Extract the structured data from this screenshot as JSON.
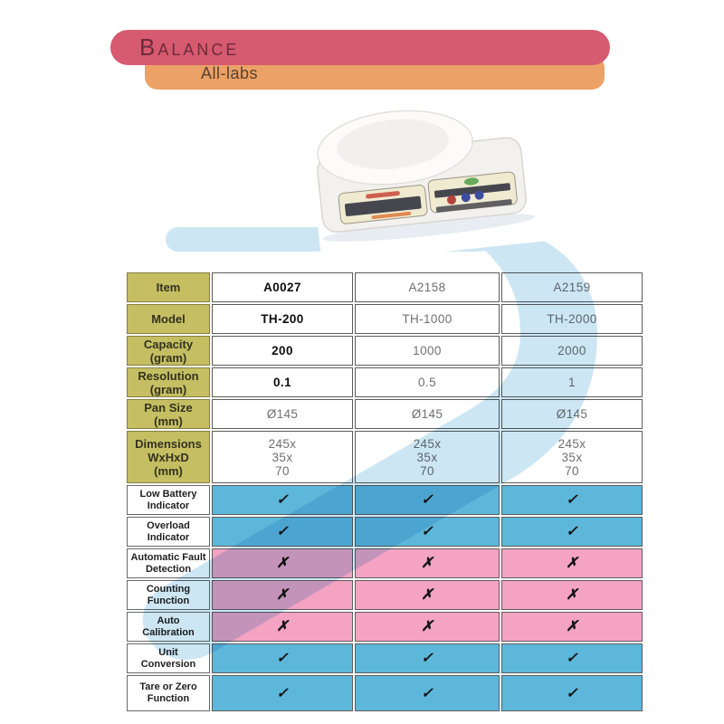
{
  "banner": {
    "title": "Balance",
    "brand": "All-labs"
  },
  "colors": {
    "banner_red": "#d65a70",
    "banner_orange": "#eca166",
    "title_maroon": "#6e2b3c",
    "header_olive": "#c5be62",
    "row_blue": "#5db7da",
    "row_pink": "#f4a3c3",
    "watermark_blue": "#c5e2f2"
  },
  "marks": {
    "yes": "✓",
    "no": "✗"
  },
  "table": {
    "columns": 3,
    "rows": [
      {
        "label_lines": [
          "Item"
        ],
        "kind": "spec",
        "first_bold": true,
        "values": [
          [
            "A0027"
          ],
          [
            "A2158"
          ],
          [
            "A2159"
          ]
        ]
      },
      {
        "label_lines": [
          "Model"
        ],
        "kind": "spec",
        "first_bold": true,
        "values": [
          [
            "TH-200"
          ],
          [
            "TH-1000"
          ],
          [
            "TH-2000"
          ]
        ]
      },
      {
        "label_lines": [
          "Capacity",
          "(gram)"
        ],
        "kind": "spec",
        "first_bold": true,
        "values": [
          [
            "200"
          ],
          [
            "1000"
          ],
          [
            "2000"
          ]
        ]
      },
      {
        "label_lines": [
          "Resolution",
          "(gram)"
        ],
        "kind": "spec",
        "first_bold": true,
        "values": [
          [
            "0.1"
          ],
          [
            "0.5"
          ],
          [
            "1"
          ]
        ]
      },
      {
        "label_lines": [
          "Pan Size",
          "(mm)"
        ],
        "kind": "spec",
        "first_bold": false,
        "values": [
          [
            "Ø145"
          ],
          [
            "Ø145"
          ],
          [
            "Ø145"
          ]
        ]
      },
      {
        "label_lines": [
          "Dimensions",
          "WxHxD",
          "(mm)"
        ],
        "kind": "spec",
        "first_bold": false,
        "values": [
          [
            "245x",
            "35x",
            "70"
          ],
          [
            "245x",
            "35x",
            "70"
          ],
          [
            "245x",
            "35x",
            "70"
          ]
        ]
      },
      {
        "label_lines": [
          "Low Battery",
          "Indicator"
        ],
        "kind": "feature",
        "available": true,
        "values": [
          [
            "✓"
          ],
          [
            "✓"
          ],
          [
            "✓"
          ]
        ]
      },
      {
        "label_lines": [
          "Overload",
          "Indicator"
        ],
        "kind": "feature",
        "available": true,
        "values": [
          [
            "✓"
          ],
          [
            "✓"
          ],
          [
            "✓"
          ]
        ]
      },
      {
        "label_lines": [
          "Automatic Fault",
          "Detection"
        ],
        "kind": "feature",
        "available": false,
        "values": [
          [
            "✗"
          ],
          [
            "✗"
          ],
          [
            "✗"
          ]
        ]
      },
      {
        "label_lines": [
          "Counting",
          "Function"
        ],
        "kind": "feature",
        "available": false,
        "values": [
          [
            "✗"
          ],
          [
            "✗"
          ],
          [
            "✗"
          ]
        ]
      },
      {
        "label_lines": [
          "Auto",
          "Calibration"
        ],
        "kind": "feature",
        "available": false,
        "values": [
          [
            "✗"
          ],
          [
            "✗"
          ],
          [
            "✗"
          ]
        ]
      },
      {
        "label_lines": [
          "Unit",
          "Conversion"
        ],
        "kind": "feature",
        "available": true,
        "values": [
          [
            "✓"
          ],
          [
            "✓"
          ],
          [
            "✓"
          ]
        ]
      },
      {
        "label_lines": [
          "Tare or Zero",
          "Function"
        ],
        "kind": "feature",
        "available": true,
        "values": [
          [
            "✓"
          ],
          [
            "✓"
          ],
          [
            "✓"
          ]
        ]
      }
    ]
  }
}
